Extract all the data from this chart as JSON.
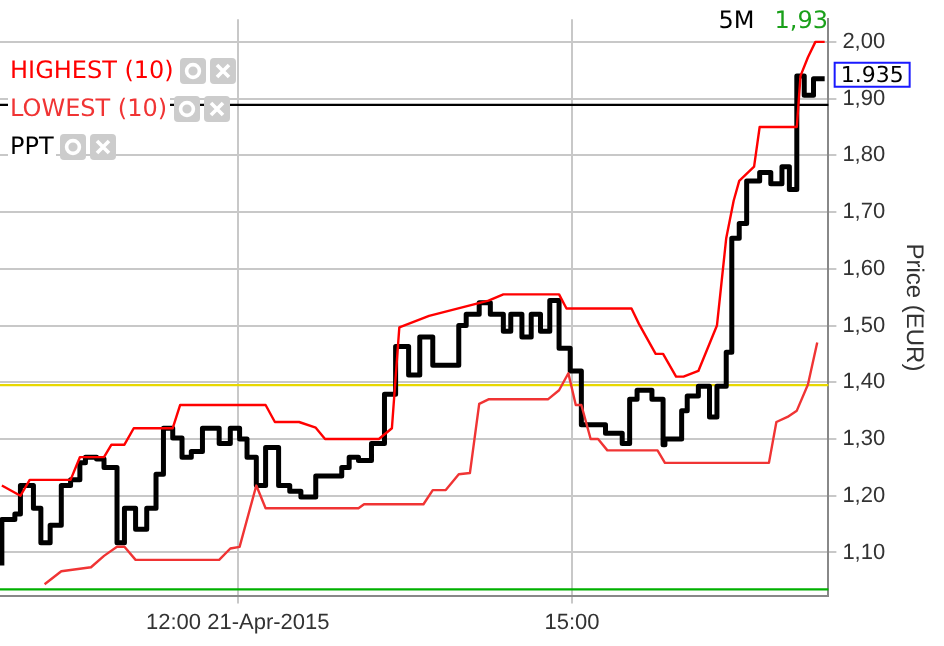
{
  "chart_data": {
    "type": "line",
    "ylabel": "Price (EUR)",
    "annotations": [
      "5M",
      "1,93",
      {
        "text": "1.935",
        "x": "2015-04-21T17:16",
        "y": 1.935
      }
    ],
    "xlim": [
      "2015-04-21T09:52",
      "2015-04-21T17:18"
    ],
    "xticks": [
      {
        "value": "2015-04-21T12:00",
        "label": "12:00 21-Apr-2015"
      },
      {
        "value": "2015-04-21T15:00",
        "label": "15:00"
      }
    ],
    "ylim": [
      1.024,
      2.04
    ],
    "yticks": [
      {
        "value": 1.1,
        "label": "1,10"
      },
      {
        "value": 1.2,
        "label": "1,20"
      },
      {
        "value": 1.3,
        "label": "1,30"
      },
      {
        "value": 1.4,
        "label": "1,40"
      },
      {
        "value": 1.5,
        "label": "1,50"
      },
      {
        "value": 1.6,
        "label": "1,60"
      },
      {
        "value": 1.7,
        "label": "1,70"
      },
      {
        "value": 1.8,
        "label": "1,80"
      },
      {
        "value": 1.9,
        "label": "1,90"
      },
      {
        "value": 2.0,
        "label": "2,00"
      }
    ],
    "grid": true,
    "legend": "top left",
    "marker": "none",
    "ref_lines": [
      {
        "axis": "y",
        "value": 1.889,
        "color": "#000000"
      },
      {
        "axis": "y",
        "value": 1.395,
        "color": "#e8d800"
      },
      {
        "axis": "y",
        "value": 1.035,
        "color": "#00b000"
      }
    ],
    "series": [
      {
        "name": "HIGHEST (10)",
        "type": "line",
        "color": "#ff0000",
        "x": [
          "2015-04-21T09:53",
          "2015-04-21T10:03",
          "2015-04-21T10:08",
          "2015-04-21T10:30",
          "2015-04-21T10:35",
          "2015-04-21T10:48",
          "2015-04-21T10:52",
          "2015-04-21T10:59",
          "2015-04-21T11:04",
          "2015-04-21T11:25",
          "2015-04-21T11:29",
          "2015-04-21T12:15",
          "2015-04-21T12:20",
          "2015-04-21T12:33",
          "2015-04-21T12:42",
          "2015-04-21T12:47",
          "2015-04-21T13:16",
          "2015-04-21T13:23",
          "2015-04-21T13:27",
          "2015-04-21T13:43",
          "2015-04-21T14:15",
          "2015-04-21T14:23",
          "2015-04-21T14:53",
          "2015-04-21T14:57",
          "2015-04-21T15:32",
          "2015-04-21T15:36",
          "2015-04-21T15:45",
          "2015-04-21T15:49",
          "2015-04-21T15:56",
          "2015-04-21T16:00",
          "2015-04-21T16:08",
          "2015-04-21T16:18",
          "2015-04-21T16:23",
          "2015-04-21T16:27",
          "2015-04-21T16:30",
          "2015-04-21T16:38",
          "2015-04-21T16:41",
          "2015-04-21T16:46",
          "2015-04-21T17:01",
          "2015-04-21T17:03",
          "2015-04-21T17:07",
          "2015-04-21T17:11",
          "2015-04-21T17:16"
        ],
        "values": [
          1.218,
          1.2,
          1.228,
          1.228,
          1.268,
          1.268,
          1.29,
          1.29,
          1.319,
          1.319,
          1.36,
          1.36,
          1.33,
          1.33,
          1.32,
          1.3,
          1.3,
          1.319,
          1.497,
          1.517,
          1.544,
          1.555,
          1.555,
          1.53,
          1.53,
          1.503,
          1.45,
          1.45,
          1.41,
          1.41,
          1.42,
          1.5,
          1.654,
          1.72,
          1.755,
          1.78,
          1.85,
          1.85,
          1.85,
          1.94,
          1.973,
          2.0,
          2.0
        ]
      },
      {
        "name": "LOWEST (10)",
        "type": "line",
        "color": "#f03434",
        "x": [
          "2015-04-21T10:16",
          "2015-04-21T10:25",
          "2015-04-21T10:41",
          "2015-04-21T10:48",
          "2015-04-21T10:55",
          "2015-04-21T10:59",
          "2015-04-21T11:05",
          "2015-04-21T11:18",
          "2015-04-21T11:50",
          "2015-04-21T11:56",
          "2015-04-21T12:01",
          "2015-04-21T12:10",
          "2015-04-21T12:15",
          "2015-04-21T13:05",
          "2015-04-21T13:08",
          "2015-04-21T13:40",
          "2015-04-21T13:45",
          "2015-04-21T13:52",
          "2015-04-21T13:59",
          "2015-04-21T14:05",
          "2015-04-21T14:10",
          "2015-04-21T14:15",
          "2015-04-21T14:47",
          "2015-04-21T14:53",
          "2015-04-21T14:58",
          "2015-04-21T15:02",
          "2015-04-21T15:05",
          "2015-04-21T15:10",
          "2015-04-21T15:14",
          "2015-04-21T15:19",
          "2015-04-21T15:46",
          "2015-04-21T15:50",
          "2015-04-21T16:46",
          "2015-04-21T16:50",
          "2015-04-21T16:56",
          "2015-04-21T17:01",
          "2015-04-21T17:07",
          "2015-04-21T17:12"
        ],
        "values": [
          1.044,
          1.067,
          1.074,
          1.094,
          1.11,
          1.11,
          1.087,
          1.087,
          1.087,
          1.107,
          1.11,
          1.218,
          1.178,
          1.178,
          1.185,
          1.185,
          1.21,
          1.21,
          1.238,
          1.24,
          1.362,
          1.37,
          1.37,
          1.386,
          1.416,
          1.36,
          1.36,
          1.3,
          1.3,
          1.28,
          1.28,
          1.258,
          1.258,
          1.33,
          1.339,
          1.35,
          1.396,
          1.47
        ]
      },
      {
        "name": "PPT",
        "type": "step",
        "color": "#000000",
        "x": [
          "2015-04-21T09:53",
          "2015-04-21T10:00",
          "2015-04-21T10:03",
          "2015-04-21T10:10",
          "2015-04-21T10:14",
          "2015-04-21T10:19",
          "2015-04-21T10:25",
          "2015-04-21T10:30",
          "2015-04-21T10:35",
          "2015-04-21T10:38",
          "2015-04-21T10:44",
          "2015-04-21T10:48",
          "2015-04-21T10:55",
          "2015-04-21T10:59",
          "2015-04-21T11:05",
          "2015-04-21T11:11",
          "2015-04-21T11:16",
          "2015-04-21T11:20",
          "2015-04-21T11:25",
          "2015-04-21T11:30",
          "2015-04-21T11:35",
          "2015-04-21T11:41",
          "2015-04-21T11:50",
          "2015-04-21T11:56",
          "2015-04-21T12:01",
          "2015-04-21T12:05",
          "2015-04-21T12:10",
          "2015-04-21T12:15",
          "2015-04-21T12:22",
          "2015-04-21T12:28",
          "2015-04-21T12:34",
          "2015-04-21T12:42",
          "2015-04-21T12:47",
          "2015-04-21T12:56",
          "2015-04-21T13:00",
          "2015-04-21T13:05",
          "2015-04-21T13:12",
          "2015-04-21T13:19",
          "2015-04-21T13:25",
          "2015-04-21T13:32",
          "2015-04-21T13:38",
          "2015-04-21T13:45",
          "2015-04-21T13:50",
          "2015-04-21T13:59",
          "2015-04-21T14:03",
          "2015-04-21T14:10",
          "2015-04-21T14:16",
          "2015-04-21T14:23",
          "2015-04-21T14:27",
          "2015-04-21T14:33",
          "2015-04-21T14:38",
          "2015-04-21T14:43",
          "2015-04-21T14:48",
          "2015-04-21T14:53",
          "2015-04-21T14:59",
          "2015-04-21T15:05",
          "2015-04-21T15:18",
          "2015-04-21T15:27",
          "2015-04-21T15:31",
          "2015-04-21T15:35",
          "2015-04-21T15:43",
          "2015-04-21T15:49",
          "2015-04-21T15:50",
          "2015-04-21T15:59",
          "2015-04-21T16:02",
          "2015-04-21T16:08",
          "2015-04-21T16:14",
          "2015-04-21T16:18",
          "2015-04-21T16:23",
          "2015-04-21T16:26",
          "2015-04-21T16:30",
          "2015-04-21T16:34",
          "2015-04-21T16:41",
          "2015-04-21T16:47",
          "2015-04-21T16:53",
          "2015-04-21T16:57",
          "2015-04-21T17:01",
          "2015-04-21T17:05",
          "2015-04-21T17:10",
          "2015-04-21T17:16"
        ],
        "values": [
          1.077,
          1.158,
          1.168,
          1.218,
          1.178,
          1.117,
          1.148,
          1.218,
          1.228,
          1.258,
          1.268,
          1.265,
          1.25,
          1.117,
          1.178,
          1.141,
          1.178,
          1.238,
          1.319,
          1.302,
          1.268,
          1.278,
          1.319,
          1.292,
          1.319,
          1.3,
          1.268,
          1.218,
          1.285,
          1.218,
          1.208,
          1.198,
          1.235,
          1.235,
          1.25,
          1.268,
          1.262,
          1.292,
          1.379,
          1.463,
          1.413,
          1.48,
          1.43,
          1.43,
          1.5,
          1.52,
          1.54,
          1.52,
          1.49,
          1.52,
          1.48,
          1.52,
          1.49,
          1.544,
          1.46,
          1.42,
          1.325,
          1.31,
          1.292,
          1.37,
          1.386,
          1.37,
          1.29,
          1.3,
          1.35,
          1.376,
          1.393,
          1.339,
          1.393,
          1.453,
          1.654,
          1.68,
          1.755,
          1.77,
          1.75,
          1.78,
          1.74,
          1.94,
          1.906,
          1.935
        ]
      }
    ]
  }
}
